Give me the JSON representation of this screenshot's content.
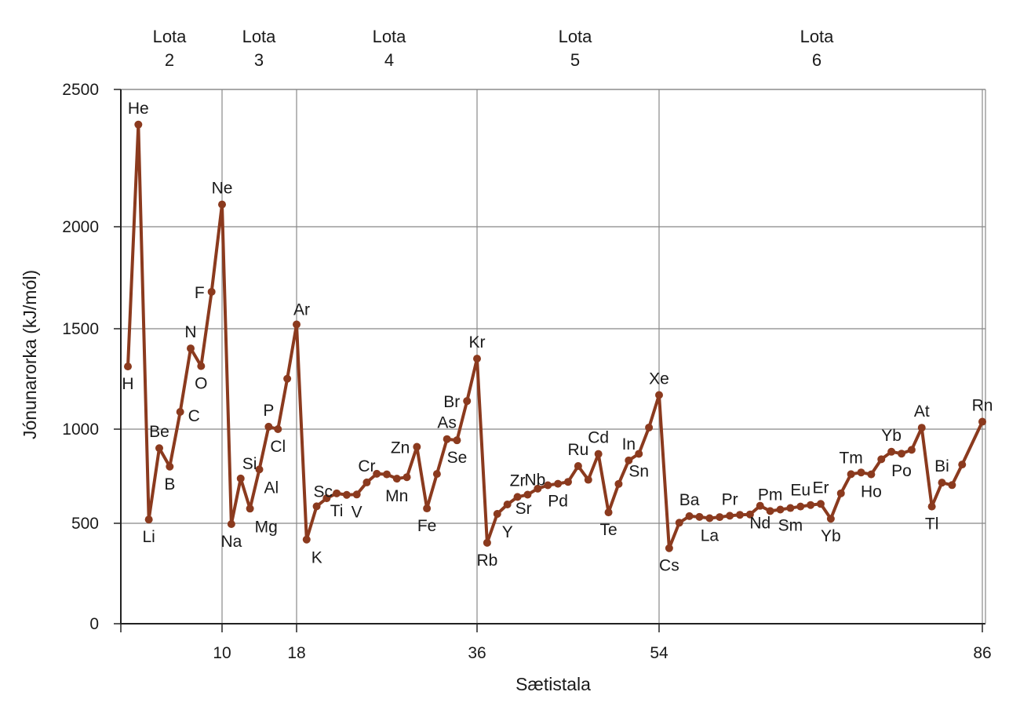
{
  "chart_data": {
    "type": "line",
    "xlabel": "Sætistala",
    "ylabel": "Jónunarorka (kJ/mól)",
    "xlim": [
      1,
      86
    ],
    "ylim": [
      0,
      2500
    ],
    "x_ticks": [
      10,
      18,
      36,
      54,
      86
    ],
    "y_ticks": [
      0,
      500,
      1000,
      1500,
      2000,
      2500
    ],
    "periods": [
      {
        "line1": "Lota",
        "line2": "2",
        "start": 3,
        "end": 10
      },
      {
        "line1": "Lota",
        "line2": "3",
        "start": 11,
        "end": 18
      },
      {
        "line1": "Lota",
        "line2": "4",
        "start": 19,
        "end": 36
      },
      {
        "line1": "Lota",
        "line2": "5",
        "start": 37,
        "end": 54
      },
      {
        "line1": "Lota",
        "line2": "6",
        "start": 55,
        "end": 86
      }
    ],
    "grid": true,
    "line_color": "#8b3a1e",
    "points": [
      {
        "z": 1,
        "ie": 1312,
        "label": "H",
        "pos": "below"
      },
      {
        "z": 2,
        "ie": 2372,
        "label": "He",
        "pos": "above"
      },
      {
        "z": 3,
        "ie": 520,
        "label": "Li",
        "pos": "below"
      },
      {
        "z": 4,
        "ie": 899,
        "label": "Be",
        "pos": "above"
      },
      {
        "z": 5,
        "ie": 801,
        "label": "B",
        "pos": "below"
      },
      {
        "z": 6,
        "ie": 1086,
        "label": "C",
        "pos": "right"
      },
      {
        "z": 7,
        "ie": 1402,
        "label": "N",
        "pos": "above"
      },
      {
        "z": 8,
        "ie": 1314,
        "label": "O",
        "pos": "below"
      },
      {
        "z": 9,
        "ie": 1681,
        "label": "F",
        "pos": "left"
      },
      {
        "z": 10,
        "ie": 2081,
        "label": "Ne",
        "pos": "above"
      },
      {
        "z": 11,
        "ie": 496,
        "label": "Na",
        "pos": "below"
      },
      {
        "z": 12,
        "ie": 738,
        "label": "Si",
        "pos": "right-high"
      },
      {
        "z": 13,
        "ie": 578,
        "label": "Mg",
        "pos": "below-right"
      },
      {
        "z": 14,
        "ie": 786,
        "label": "Al",
        "pos": "below-right"
      },
      {
        "z": 15,
        "ie": 1012,
        "label": "P",
        "pos": "above"
      },
      {
        "z": 16,
        "ie": 1000,
        "label": "Cl",
        "pos": "below"
      },
      {
        "z": 17,
        "ie": 1251,
        "label": "",
        "pos": "none"
      },
      {
        "z": 18,
        "ie": 1521,
        "label": "Ar",
        "pos": "above-right"
      },
      {
        "z": 19,
        "ie": 419,
        "label": "K",
        "pos": "below-right"
      },
      {
        "z": 20,
        "ie": 590,
        "label": "Sc",
        "pos": "above-right"
      },
      {
        "z": 21,
        "ie": 633,
        "label": "",
        "pos": "none"
      },
      {
        "z": 22,
        "ie": 659,
        "label": "Ti",
        "pos": "below"
      },
      {
        "z": 23,
        "ie": 651,
        "label": "",
        "pos": "none"
      },
      {
        "z": 24,
        "ie": 653,
        "label": "V",
        "pos": "below"
      },
      {
        "z": 25,
        "ie": 717,
        "label": "Cr",
        "pos": "above"
      },
      {
        "z": 26,
        "ie": 763,
        "label": "",
        "pos": "none"
      },
      {
        "z": 27,
        "ie": 760,
        "label": "",
        "pos": "none"
      },
      {
        "z": 28,
        "ie": 737,
        "label": "Mn",
        "pos": "below"
      },
      {
        "z": 29,
        "ie": 745,
        "label": "",
        "pos": "none"
      },
      {
        "z": 30,
        "ie": 906,
        "label": "Zn",
        "pos": "left"
      },
      {
        "z": 31,
        "ie": 579,
        "label": "Fe",
        "pos": "below"
      },
      {
        "z": 32,
        "ie": 762,
        "label": "",
        "pos": "none"
      },
      {
        "z": 33,
        "ie": 947,
        "label": "As",
        "pos": "above"
      },
      {
        "z": 34,
        "ie": 941,
        "label": "Se",
        "pos": "below"
      },
      {
        "z": 35,
        "ie": 1140,
        "label": "Br",
        "pos": "left"
      },
      {
        "z": 36,
        "ie": 1351,
        "label": "Kr",
        "pos": "above"
      },
      {
        "z": 37,
        "ie": 403,
        "label": "Rb",
        "pos": "below"
      },
      {
        "z": 38,
        "ie": 550,
        "label": "Y",
        "pos": "below-right"
      },
      {
        "z": 39,
        "ie": 600,
        "label": "Sr",
        "pos": "right"
      },
      {
        "z": 40,
        "ie": 640,
        "label": "Zr",
        "pos": "above"
      },
      {
        "z": 41,
        "ie": 652,
        "label": "Nb",
        "pos": "above-right"
      },
      {
        "z": 42,
        "ie": 684,
        "label": "",
        "pos": "none"
      },
      {
        "z": 43,
        "ie": 702,
        "label": "",
        "pos": "none"
      },
      {
        "z": 44,
        "ie": 710,
        "label": "Pd",
        "pos": "below"
      },
      {
        "z": 45,
        "ie": 720,
        "label": "",
        "pos": "none"
      },
      {
        "z": 46,
        "ie": 804,
        "label": "Ru",
        "pos": "above"
      },
      {
        "z": 47,
        "ie": 731,
        "label": "",
        "pos": "none"
      },
      {
        "z": 48,
        "ie": 868,
        "label": "Cd",
        "pos": "above"
      },
      {
        "z": 49,
        "ie": 558,
        "label": "Te",
        "pos": "below"
      },
      {
        "z": 50,
        "ie": 709,
        "label": "",
        "pos": "none"
      },
      {
        "z": 51,
        "ie": 834,
        "label": "In",
        "pos": "above"
      },
      {
        "z": 52,
        "ie": 869,
        "label": "Sn",
        "pos": "below"
      },
      {
        "z": 53,
        "ie": 1008,
        "label": "",
        "pos": "none"
      },
      {
        "z": 54,
        "ie": 1170,
        "label": "Xe",
        "pos": "above"
      },
      {
        "z": 55,
        "ie": 376,
        "label": "Cs",
        "pos": "below"
      },
      {
        "z": 56,
        "ie": 503,
        "label": "",
        "pos": "none"
      },
      {
        "z": 57,
        "ie": 538,
        "label": "Ba",
        "pos": "above"
      },
      {
        "z": 58,
        "ie": 534,
        "label": "",
        "pos": "none"
      },
      {
        "z": 59,
        "ie": 527,
        "label": "La",
        "pos": "below"
      },
      {
        "z": 60,
        "ie": 533,
        "label": "",
        "pos": "none"
      },
      {
        "z": 61,
        "ie": 540,
        "label": "Pr",
        "pos": "above"
      },
      {
        "z": 62,
        "ie": 545,
        "label": "",
        "pos": "none"
      },
      {
        "z": 63,
        "ie": 547,
        "label": "",
        "pos": "none"
      },
      {
        "z": 64,
        "ie": 593,
        "label": "Nd",
        "pos": "below"
      },
      {
        "z": 65,
        "ie": 565,
        "label": "Pm",
        "pos": "above"
      },
      {
        "z": 66,
        "ie": 573,
        "label": "",
        "pos": "none"
      },
      {
        "z": 67,
        "ie": 581,
        "label": "Sm",
        "pos": "below"
      },
      {
        "z": 68,
        "ie": 589,
        "label": "Eu",
        "pos": "above"
      },
      {
        "z": 69,
        "ie": 597,
        "label": "",
        "pos": "none"
      },
      {
        "z": 70,
        "ie": 603,
        "label": "Er",
        "pos": "above"
      },
      {
        "z": 71,
        "ie": 524,
        "label": "Yb",
        "pos": "below"
      },
      {
        "z": 72,
        "ie": 659,
        "label": "",
        "pos": "none"
      },
      {
        "z": 73,
        "ie": 761,
        "label": "Tm",
        "pos": "above"
      },
      {
        "z": 74,
        "ie": 770,
        "label": "",
        "pos": "none"
      },
      {
        "z": 75,
        "ie": 760,
        "label": "Ho",
        "pos": "below"
      },
      {
        "z": 76,
        "ie": 840,
        "label": "",
        "pos": "none"
      },
      {
        "z": 77,
        "ie": 880,
        "label": "Yb",
        "pos": "above"
      },
      {
        "z": 78,
        "ie": 870,
        "label": "Po",
        "pos": "below"
      },
      {
        "z": 79,
        "ie": 890,
        "label": "",
        "pos": "none"
      },
      {
        "z": 80,
        "ie": 1007,
        "label": "At",
        "pos": "above"
      },
      {
        "z": 81,
        "ie": 589,
        "label": "Tl",
        "pos": "below"
      },
      {
        "z": 82,
        "ie": 716,
        "label": "Bi",
        "pos": "above"
      },
      {
        "z": 83,
        "ie": 703,
        "label": "",
        "pos": "none"
      },
      {
        "z": 84,
        "ie": 812,
        "label": "",
        "pos": "none"
      },
      {
        "z": 86,
        "ie": 1037,
        "label": "Rn",
        "pos": "above"
      }
    ]
  }
}
